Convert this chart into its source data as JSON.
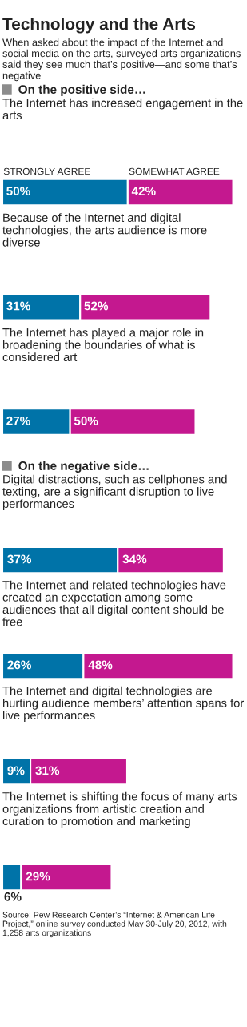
{
  "chart_data": [
    {
      "type": "other",
      "title": "Technology and the Arts",
      "subtitle": "When asked about the impact of the Internet and social media on the arts, surveyed arts organizations said they see much that’s positive—and some that’s negative"
    },
    {
      "type": "bar",
      "orientation": "horizontal",
      "stacked": true,
      "title": "On the positive side…",
      "categories": [
        "The Internet has increased engagement in the arts",
        "Because of the Internet and digital technologies, the arts audience is more diverse",
        "The Internet has played a major role in broadening the boundaries of what is considered art"
      ],
      "series": [
        {
          "name": "STRONGLY AGREE",
          "color": "#0073a8",
          "values": [
            50,
            31,
            27
          ],
          "value_labels": [
            "50%",
            "31%",
            "27%"
          ]
        },
        {
          "name": "SOMEWHAT AGREE",
          "color": "#c4188f",
          "values": [
            42,
            52,
            50
          ],
          "value_labels": [
            "42%",
            "52%",
            "50%"
          ]
        }
      ]
    },
    {
      "type": "bar",
      "orientation": "horizontal",
      "stacked": true,
      "title": "On the negative side…",
      "categories": [
        "Digital distractions, such as cellphones and texting, are a significant disruption to live performances",
        "The Internet and related technologies have created an expectation among some audiences that all digital content should be free",
        "The Internet and digital technologies are hurting audience members’ attention spans for live performances",
        "The Internet is shifting the focus of many arts organizations from artistic creation and curation to promotion and marketing"
      ],
      "series": [
        {
          "color": "#0073a8",
          "values": [
            37,
            26,
            9,
            6
          ],
          "value_labels": [
            "37%",
            "26%",
            "9%",
            "6%"
          ]
        },
        {
          "color": "#c4188f",
          "values": [
            34,
            48,
            31,
            29
          ],
          "value_labels": [
            "34%",
            "48%",
            "31%",
            "29%"
          ]
        }
      ],
      "annotations": [
        "Source: Pew Research Center’s “Internet & American Life Project,” online survey conducted May 30-July 20, 2012, with 1,258 arts organizations"
      ]
    }
  ]
}
